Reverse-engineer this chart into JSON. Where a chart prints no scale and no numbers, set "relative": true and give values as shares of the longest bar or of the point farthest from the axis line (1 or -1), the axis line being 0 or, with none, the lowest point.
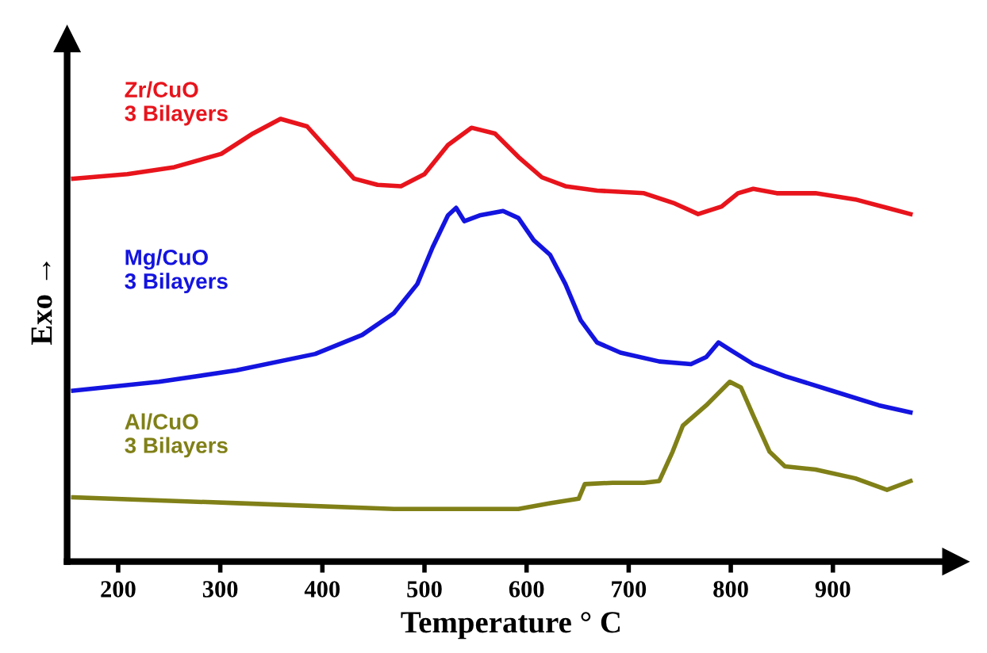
{
  "chart_data": {
    "type": "line",
    "relative": true,
    "xlabel": "Temperature ° C",
    "ylabel": "Exo →",
    "xlim": [
      150,
      1020
    ],
    "xticks": [
      200,
      300,
      400,
      500,
      600,
      700,
      800,
      900
    ],
    "grid": false,
    "legend": false,
    "marker": "none",
    "line_style": "solid",
    "series": [
      {
        "name": "Zr/CuO\n3 Bilayers",
        "color": "#e8141c",
        "x": [
          156,
          209,
          255,
          301,
          332,
          359,
          385,
          408,
          431,
          454,
          477,
          500,
          523,
          546,
          569,
          592,
          615,
          638,
          669,
          715,
          745,
          768,
          791,
          807,
          822,
          845,
          883,
          922,
          953,
          976
        ],
        "values": [
          0.865,
          0.875,
          0.891,
          0.921,
          0.967,
          1.0,
          0.983,
          0.924,
          0.865,
          0.851,
          0.848,
          0.875,
          0.941,
          0.98,
          0.967,
          0.914,
          0.868,
          0.848,
          0.838,
          0.832,
          0.809,
          0.785,
          0.802,
          0.832,
          0.842,
          0.832,
          0.832,
          0.818,
          0.799,
          0.785
        ]
      },
      {
        "name": "Mg/CuO\n3 Bilayers",
        "color": "#1414e0",
        "x": [
          156,
          240,
          316,
          393,
          439,
          470,
          493,
          508,
          523,
          531,
          539,
          554,
          577,
          592,
          607,
          623,
          638,
          653,
          669,
          692,
          730,
          761,
          776,
          788,
          799,
          822,
          853,
          899,
          945,
          976
        ],
        "values": [
          0.386,
          0.406,
          0.432,
          0.469,
          0.512,
          0.561,
          0.627,
          0.71,
          0.782,
          0.799,
          0.769,
          0.782,
          0.792,
          0.776,
          0.726,
          0.693,
          0.627,
          0.545,
          0.495,
          0.472,
          0.452,
          0.446,
          0.462,
          0.495,
          0.479,
          0.446,
          0.419,
          0.386,
          0.353,
          0.337
        ]
      },
      {
        "name": "Al/CuO\n3 Bilayers",
        "color": "#808018",
        "x": [
          156,
          316,
          470,
          592,
          623,
          651,
          657,
          684,
          715,
          730,
          743,
          753,
          776,
          799,
          810,
          822,
          838,
          853,
          883,
          922,
          953,
          976
        ],
        "values": [
          0.145,
          0.132,
          0.119,
          0.119,
          0.132,
          0.142,
          0.175,
          0.178,
          0.178,
          0.182,
          0.248,
          0.307,
          0.353,
          0.406,
          0.393,
          0.33,
          0.248,
          0.215,
          0.208,
          0.188,
          0.162,
          0.182
        ]
      }
    ]
  }
}
